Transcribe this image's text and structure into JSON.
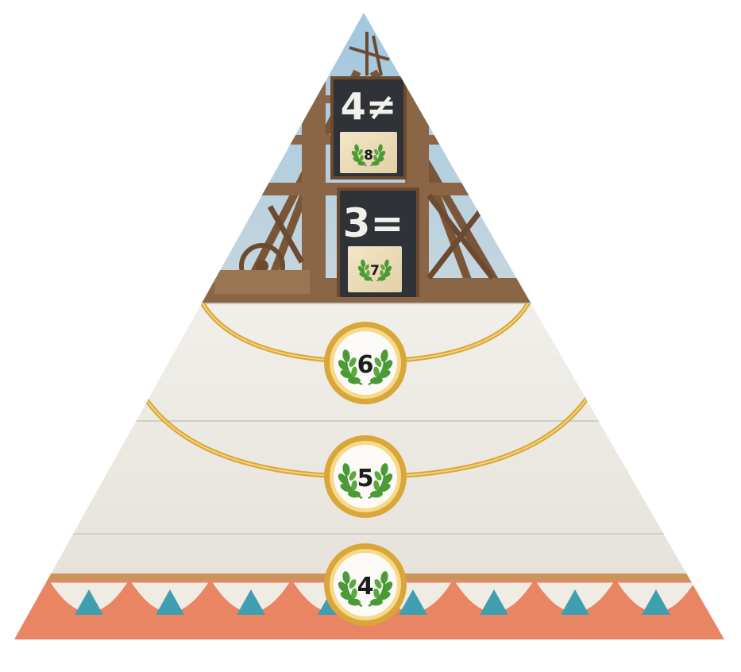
{
  "top_tier": {
    "upper_card": {
      "condition": "4≠",
      "points": "8"
    },
    "lower_card": {
      "condition": "3=",
      "points": "7"
    }
  },
  "tiers": [
    {
      "points": "6"
    },
    {
      "points": "5"
    },
    {
      "points": "4"
    }
  ],
  "colors": {
    "stone": "#ece9e2",
    "gold": "#d9a63a",
    "laurel": "#3f8f2f",
    "coral": "#e98563",
    "teal": "#3f9fb0",
    "chalkboard": "#2f3237",
    "wood": "#8a6646",
    "sky": "#a9c9dc"
  }
}
